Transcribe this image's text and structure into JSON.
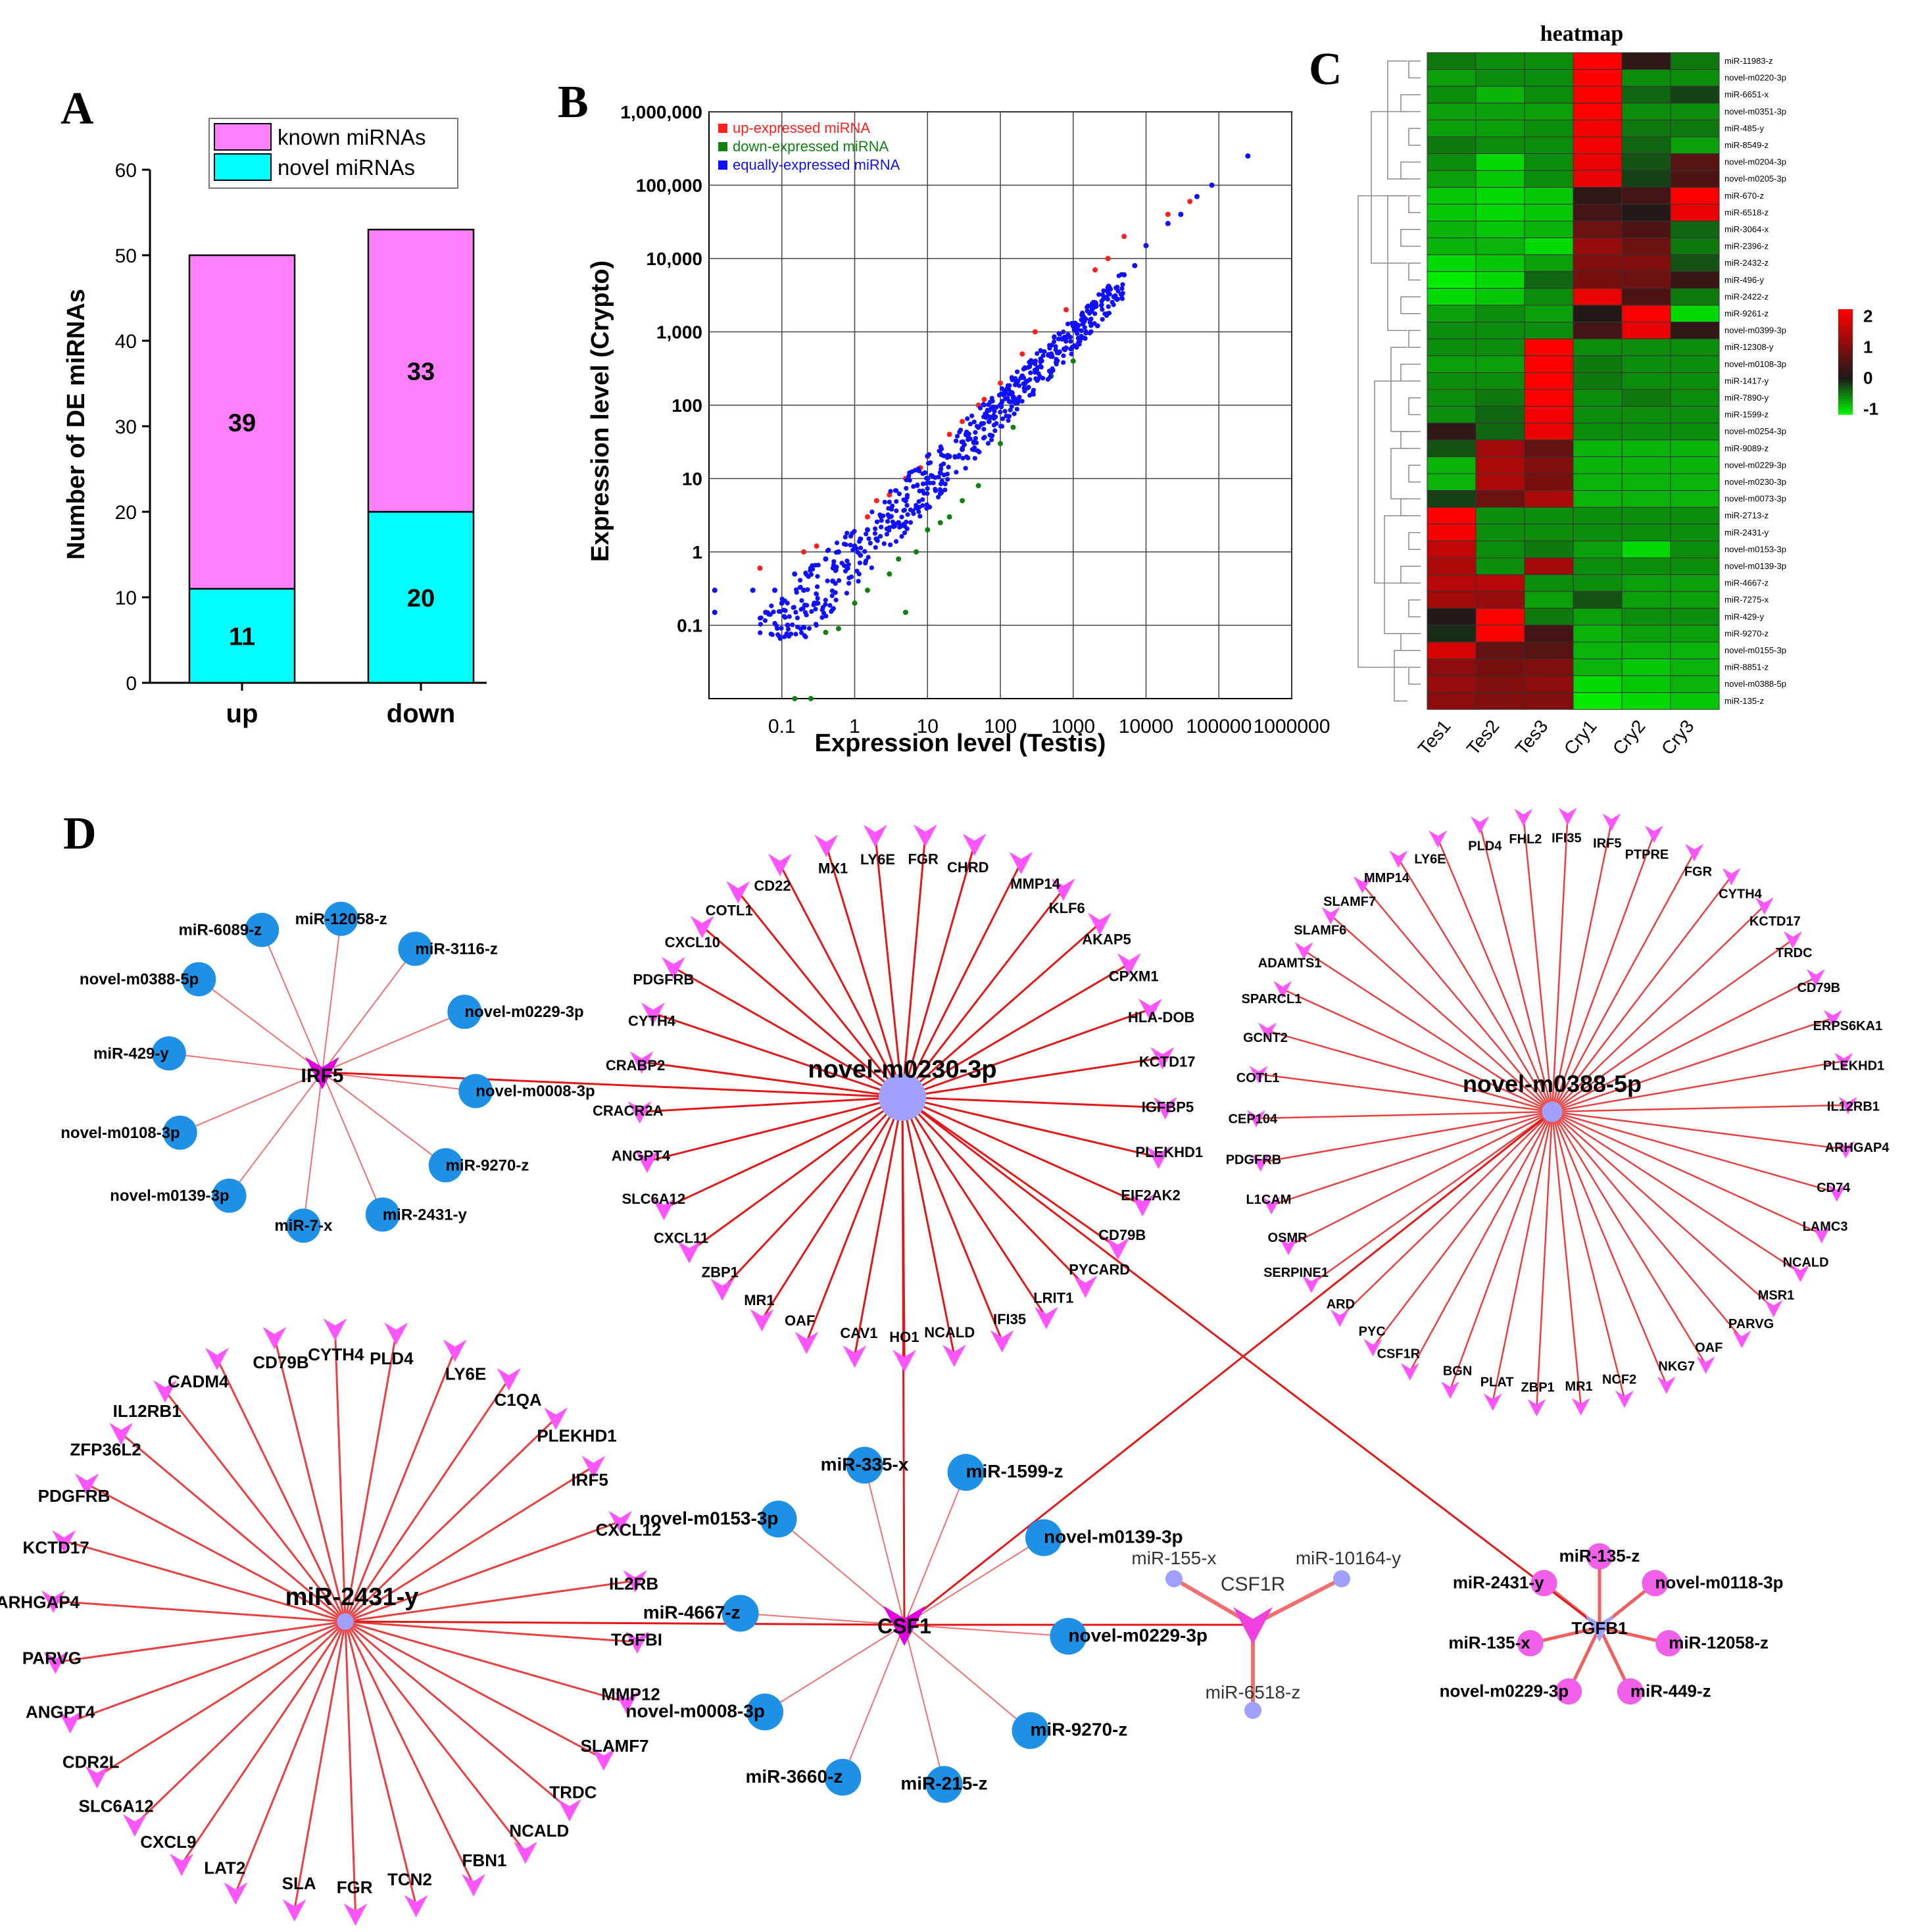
{
  "panels": {
    "A": "A",
    "B": "B",
    "C": "C",
    "D": "D"
  },
  "chart_data": [
    {
      "panel": "A",
      "type": "bar",
      "stacked": true,
      "ylabel": "Number of DE miRNAs",
      "categories": [
        "up",
        "down"
      ],
      "ylim": [
        0,
        60
      ],
      "yticks": [
        0,
        10,
        20,
        30,
        40,
        50,
        60
      ],
      "series": [
        {
          "name": "novel miRNAs",
          "values": [
            11,
            20
          ],
          "color": "#00FFFF"
        },
        {
          "name": "known miRNAs",
          "values": [
            39,
            33
          ],
          "color": "#FF80FF"
        }
      ],
      "data_labels": [
        [
          "11",
          "39"
        ],
        [
          "20",
          "33"
        ]
      ],
      "legend": "top"
    },
    {
      "panel": "B",
      "type": "scatter",
      "xlabel": "Expression level (Testis)",
      "ylabel": "Expression level (Crypto)",
      "xscale": "log",
      "yscale": "log",
      "xlim": [
        0.01,
        1000000
      ],
      "ylim": [
        0.01,
        1000000
      ],
      "xticks": [
        "0.1",
        "1",
        "10",
        "100",
        "1000",
        "10000",
        "100000",
        "1000000"
      ],
      "yticks": [
        "0.1",
        "1",
        "10",
        "100",
        "1,000",
        "10,000",
        "100,000",
        "1,000,000"
      ],
      "grid": true,
      "legend": "top-left",
      "series": [
        {
          "name": "up-expressed miRNA",
          "color": "#FF2020",
          "points": [
            [
              0.05,
              0.6
            ],
            [
              0.2,
              1
            ],
            [
              0.3,
              1.2
            ],
            [
              1.5,
              3
            ],
            [
              2,
              5
            ],
            [
              3,
              6
            ],
            [
              5,
              10
            ],
            [
              8,
              14
            ],
            [
              10,
              20
            ],
            [
              20,
              40
            ],
            [
              30,
              60
            ],
            [
              50,
              100
            ],
            [
              60,
              120
            ],
            [
              100,
              200
            ],
            [
              200,
              500
            ],
            [
              300,
              1000
            ],
            [
              800,
              2000
            ],
            [
              2000,
              7000
            ],
            [
              3000,
              10000
            ],
            [
              5000,
              20000
            ],
            [
              20000,
              40000
            ],
            [
              40000,
              60000
            ]
          ]
        },
        {
          "name": "down-expressed miRNA",
          "color": "#108010",
          "points": [
            [
              0.15,
              0.01
            ],
            [
              0.25,
              0.01
            ],
            [
              0.4,
              0.08
            ],
            [
              0.6,
              0.09
            ],
            [
              1,
              0.2
            ],
            [
              1.5,
              0.3
            ],
            [
              3,
              0.5
            ],
            [
              4,
              0.8
            ],
            [
              5,
              0.15
            ],
            [
              7,
              1
            ],
            [
              10,
              2
            ],
            [
              15,
              2.5
            ],
            [
              20,
              3
            ],
            [
              30,
              5
            ],
            [
              50,
              8
            ],
            [
              100,
              30
            ],
            [
              150,
              50
            ],
            [
              500,
              250
            ],
            [
              1000,
              400
            ]
          ]
        },
        {
          "name": "equally-expressed miRNA",
          "color": "#1010FF",
          "points": [
            [
              0.012,
              0.3
            ],
            [
              0.012,
              0.15
            ],
            [
              0.04,
              0.3
            ],
            [
              0.06,
              0.15
            ],
            [
              0.08,
              0.3
            ],
            [
              0.1,
              0.2
            ],
            [
              0.12,
              0.1
            ],
            [
              0.15,
              0.5
            ],
            [
              0.2,
              0.3
            ],
            [
              0.25,
              0.6
            ],
            [
              0.3,
              0.2
            ],
            [
              0.4,
              0.8
            ],
            [
              0.5,
              0.4
            ],
            [
              0.6,
              1
            ],
            [
              0.8,
              0.6
            ],
            [
              1,
              1.2
            ],
            [
              1.2,
              0.9
            ],
            [
              1.5,
              2
            ],
            [
              2,
              1.5
            ],
            [
              3,
              3
            ],
            [
              4,
              2.5
            ],
            [
              5,
              5
            ],
            [
              7,
              4
            ],
            [
              10,
              10
            ],
            [
              15,
              12
            ],
            [
              20,
              20
            ],
            [
              30,
              25
            ],
            [
              50,
              50
            ],
            [
              70,
              60
            ],
            [
              100,
              100
            ],
            [
              150,
              130
            ],
            [
              200,
              250
            ],
            [
              300,
              300
            ],
            [
              500,
              500
            ],
            [
              700,
              800
            ],
            [
              1000,
              1200
            ],
            [
              2000,
              2500
            ],
            [
              3000,
              4000
            ],
            [
              5000,
              6000
            ],
            [
              7000,
              8000
            ],
            [
              10000,
              15000
            ],
            [
              20000,
              30000
            ],
            [
              30000,
              40000
            ],
            [
              50000,
              70000
            ],
            [
              80000,
              100000
            ],
            [
              250000,
              250000
            ]
          ]
        }
      ]
    },
    {
      "panel": "C",
      "type": "heatmap",
      "title": "heatmap",
      "columns": [
        "Tes1",
        "Tes2",
        "Tes3",
        "Cry1",
        "Cry2",
        "Cry3"
      ],
      "rows": [
        "miR-11983-z",
        "novel-m0220-3p",
        "miR-6651-x",
        "novel-m0351-3p",
        "miR-485-y",
        "miR-8549-z",
        "novel-m0204-3p",
        "novel-m0205-3p",
        "miR-670-z",
        "miR-6518-z",
        "miR-3064-x",
        "miR-2396-z",
        "miR-2432-z",
        "miR-496-y",
        "miR-2422-z",
        "miR-9261-z",
        "novel-m0399-3p",
        "miR-12308-y",
        "novel-m0108-3p",
        "miR-1417-y",
        "miR-7890-y",
        "miR-1599-z",
        "novel-m0254-3p",
        "miR-9089-z",
        "novel-m0229-3p",
        "novel-m0230-3p",
        "novel-m0073-3p",
        "miR-2713-z",
        "miR-2431-y",
        "novel-m0153-3p",
        "novel-m0139-3p",
        "miR-4667-z",
        "miR-7275-x",
        "miR-429-y",
        "miR-9270-z",
        "novel-m0155-3p",
        "miR-8851-z",
        "novel-m0388-5p",
        "miR-135-z"
      ],
      "values": [
        [
          -0.5,
          -0.6,
          -0.6,
          2.2,
          0.2,
          -0.5
        ],
        [
          -0.7,
          -0.6,
          -0.6,
          2.2,
          -0.6,
          -0.6
        ],
        [
          -0.6,
          -0.8,
          -0.6,
          2.2,
          -0.4,
          -0.2
        ],
        [
          -0.7,
          -0.7,
          -0.7,
          2.2,
          -0.6,
          -0.6
        ],
        [
          -0.7,
          -0.7,
          -0.6,
          2.1,
          -0.5,
          -0.5
        ],
        [
          -0.5,
          -0.6,
          -0.6,
          2.1,
          -0.4,
          -0.7
        ],
        [
          -0.6,
          -1.0,
          -0.6,
          2.0,
          -0.3,
          0.6
        ],
        [
          -0.7,
          -0.9,
          -0.6,
          2.0,
          -0.2,
          0.5
        ],
        [
          -0.9,
          -1.0,
          -0.9,
          0.2,
          0.4,
          2.2
        ],
        [
          -0.9,
          -1.0,
          -0.9,
          0.4,
          0.1,
          2.0
        ],
        [
          -0.8,
          -0.9,
          -0.8,
          0.8,
          0.5,
          -0.4
        ],
        [
          -0.8,
          -0.8,
          -1.0,
          1.2,
          0.8,
          -0.5
        ],
        [
          -1.0,
          -0.9,
          -0.7,
          1.0,
          1.0,
          -0.3
        ],
        [
          -1.1,
          -1.0,
          -0.4,
          0.9,
          0.8,
          0.3
        ],
        [
          -1.0,
          -0.9,
          -0.6,
          2.0,
          0.5,
          -0.5
        ],
        [
          -0.7,
          -0.6,
          -0.7,
          0.1,
          2.2,
          -1.0
        ],
        [
          -0.6,
          -0.6,
          -0.6,
          0.4,
          2.0,
          0.2
        ],
        [
          -0.6,
          -0.6,
          2.2,
          -0.6,
          -0.6,
          -0.6
        ],
        [
          -0.7,
          -0.7,
          2.2,
          -0.5,
          -0.6,
          -0.6
        ],
        [
          -0.6,
          -0.6,
          2.2,
          -0.5,
          -0.6,
          -0.6
        ],
        [
          -0.6,
          -0.5,
          2.2,
          -0.6,
          -0.5,
          -0.6
        ],
        [
          -0.6,
          -0.4,
          2.1,
          -0.6,
          -0.6,
          -0.6
        ],
        [
          0.2,
          -0.4,
          2.0,
          -0.6,
          -0.6,
          -0.6
        ],
        [
          -0.3,
          1.3,
          0.7,
          -0.8,
          -0.8,
          -0.8
        ],
        [
          -0.8,
          1.4,
          1.0,
          -0.8,
          -0.8,
          -0.8
        ],
        [
          -0.8,
          1.4,
          0.9,
          -0.8,
          -0.8,
          -0.8
        ],
        [
          -0.2,
          0.8,
          1.4,
          -0.8,
          -0.8,
          -0.8
        ],
        [
          2.2,
          -0.6,
          -0.6,
          -0.6,
          -0.6,
          -0.6
        ],
        [
          2.1,
          -0.6,
          -0.6,
          -0.6,
          -0.6,
          -0.6
        ],
        [
          1.6,
          -0.6,
          -0.5,
          -0.7,
          -1.0,
          -0.6
        ],
        [
          1.4,
          -0.6,
          1.3,
          -0.6,
          -0.6,
          -0.6
        ],
        [
          1.5,
          1.5,
          -0.6,
          -0.6,
          -0.7,
          -0.7
        ],
        [
          1.3,
          1.2,
          -0.7,
          -0.3,
          -0.7,
          -0.7
        ],
        [
          0.1,
          2.2,
          -0.5,
          -0.7,
          -0.6,
          -0.6
        ],
        [
          -0.1,
          2.2,
          0.4,
          -0.8,
          -0.7,
          -0.7
        ],
        [
          1.8,
          0.7,
          0.6,
          -0.8,
          -0.8,
          -0.8
        ],
        [
          1.1,
          0.9,
          1.0,
          -0.8,
          -0.9,
          -0.8
        ],
        [
          1.2,
          1.0,
          1.1,
          -1.0,
          -0.9,
          -0.8
        ],
        [
          1.1,
          1.0,
          1.0,
          -1.1,
          -1.0,
          -0.9
        ]
      ],
      "colorbar_ticks": [
        "2",
        "1",
        "0",
        "-1"
      ],
      "colors": {
        "high": "#FF0000",
        "mid": "#1A1A1A",
        "low": "#00FF00"
      }
    }
  ],
  "network": {
    "panel": "D",
    "colors": {
      "mirna_node": "#1E90E6",
      "target_arrow": "#FF55FF",
      "edge": "#F04040",
      "hub_node": "#A0A0FF",
      "tgfb_mirna": "#F060E8"
    },
    "hubs": {
      "irf5": "IRF5",
      "m0230": "novel-m0230-3p",
      "m0388": "novel-m0388-5p",
      "mir2431": "miR-2431-y",
      "csf1": "CSF1",
      "csf1r": "CSF1R",
      "tgfb1": "TGFB1"
    },
    "irf5_mirnas": [
      "miR-12058-z",
      "miR-3116-z",
      "novel-m0229-3p",
      "novel-m0008-3p",
      "miR-9270-z",
      "miR-2431-y",
      "miR-7-x",
      "novel-m0139-3p",
      "novel-m0108-3p",
      "miR-429-y",
      "novel-m0388-5p",
      "miR-6089-z"
    ],
    "m0230_targets": [
      "FGR",
      "CHRD",
      "MMP14",
      "KLF6",
      "AKAP5",
      "CPXM1",
      "HLA-DOB",
      "KCTD17",
      "IGFBP5",
      "PLEKHD1",
      "EIF2AK2",
      "CD79B",
      "PYCARD",
      "LRIT1",
      "IFI35",
      "NCALD",
      "HO1",
      "CAV1",
      "OAF",
      "MR1",
      "ZBP1",
      "CXCL11",
      "SLC6A12",
      "ANGPT4",
      "CRACR2A",
      "CRABP2",
      "CYTH4",
      "PDGFRB",
      "CXCL10",
      "COTL1",
      "CD22",
      "MX1",
      "LY6E"
    ],
    "m0388_targets": [
      "IFI35",
      "IRF5",
      "PTPRE",
      "FGR",
      "CYTH4",
      "KCTD17",
      "TRDC",
      "CD79B",
      "ERPS6KA1",
      "PLEKHD1",
      "IL12RB1",
      "ARHGAP4",
      "CD74",
      "LAMC3",
      "NCALD",
      "MSR1",
      "PARVG",
      "OAF",
      "NKG7",
      "NCF2",
      "MR1",
      "ZBP1",
      "PLAT",
      "BGN",
      "CSF1R",
      "PYC",
      "ARD",
      "SERPINE1",
      "OSMR",
      "L1CAM",
      "PDGFRB",
      "CEP104",
      "COTL1",
      "GCNT2",
      "SPARCL1",
      "ADAMTS1",
      "SLAMF6",
      "SLAMF7",
      "MMP14",
      "LY6E",
      "PLD4",
      "FHL2"
    ],
    "mir2431_targets": [
      "PLD4",
      "LY6E",
      "C1QA",
      "PLEKHD1",
      "IRF5",
      "CXCL12",
      "IL2RB",
      "TGFBI",
      "MMP12",
      "SLAMF7",
      "TRDC",
      "NCALD",
      "FBN1",
      "TCN2",
      "FGR",
      "SLA",
      "LAT2",
      "CXCL9",
      "SLC6A12",
      "CDR2L",
      "ANGPT4",
      "PARVG",
      "ARHGAP4",
      "KCTD17",
      "PDGFRB",
      "ZFP36L2",
      "IL12RB1",
      "CADM4",
      "CD79B",
      "CYTH4"
    ],
    "csf1_mirnas": [
      "miR-335-x",
      "miR-1599-z",
      "novel-m0139-3p",
      "novel-m0229-3p",
      "miR-9270-z",
      "miR-215-z",
      "miR-3660-z",
      "novel-m0008-3p",
      "miR-4667-z",
      "novel-m0153-3p"
    ],
    "csf1r_mirnas": [
      "miR-155-x",
      "miR-10164-y",
      "miR-6518-z"
    ],
    "tgfb1_mirnas": [
      "miR-135-z",
      "novel-m0118-3p",
      "miR-12058-z",
      "miR-449-z",
      "novel-m0229-3p",
      "miR-135-x",
      "miR-2431-y"
    ]
  }
}
